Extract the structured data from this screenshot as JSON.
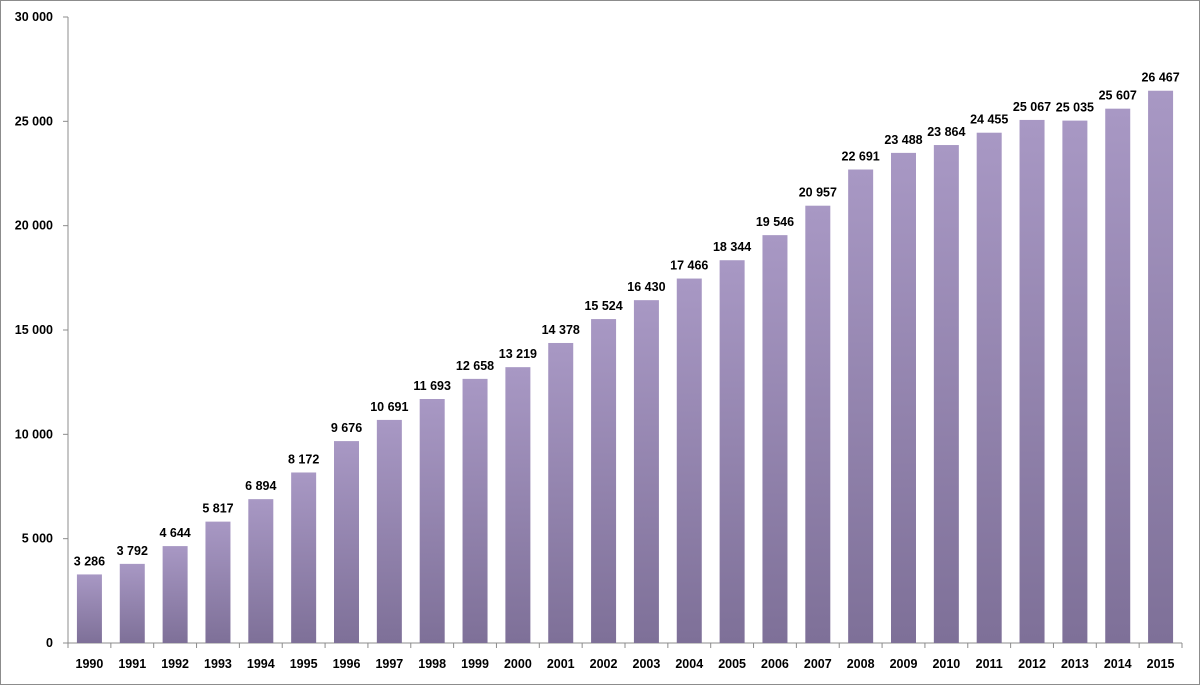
{
  "chart_data": {
    "type": "bar",
    "title": "",
    "xlabel": "",
    "ylabel": "",
    "ylim": [
      0,
      30000
    ],
    "yticks": [
      0,
      5000,
      10000,
      15000,
      20000,
      25000,
      30000
    ],
    "ytick_labels": [
      "0",
      "5 000",
      "10 000",
      "15 000",
      "20 000",
      "25 000",
      "30 000"
    ],
    "grid": false,
    "legend": "none",
    "categories": [
      "1990",
      "1991",
      "1992",
      "1993",
      "1994",
      "1995",
      "1996",
      "1997",
      "1998",
      "1999",
      "2000",
      "2001",
      "2002",
      "2003",
      "2004",
      "2005",
      "2006",
      "2007",
      "2008",
      "2009",
      "2010",
      "2011",
      "2012",
      "2013",
      "2014",
      "2015"
    ],
    "values": [
      3286,
      3792,
      4644,
      5817,
      6894,
      8172,
      9676,
      10691,
      11693,
      12658,
      13219,
      14378,
      15524,
      16430,
      17466,
      18344,
      19546,
      20957,
      22691,
      23488,
      23864,
      24455,
      25067,
      25035,
      25607,
      26467
    ],
    "value_labels": [
      "3 286",
      "3 792",
      "4 644",
      "5 817",
      "6 894",
      "8 172",
      "9 676",
      "10 691",
      "11 693",
      "12 658",
      "13 219",
      "14 378",
      "15 524",
      "16 430",
      "17 466",
      "18 344",
      "19 546",
      "20 957",
      "22 691",
      "23 488",
      "23 864",
      "24 455",
      "25 067",
      "25 035",
      "25 607",
      "26 467"
    ],
    "colors": {
      "bar_top": "#a898c4",
      "bar_bottom": "#7e7098",
      "axis": "#8c8c8c"
    }
  }
}
